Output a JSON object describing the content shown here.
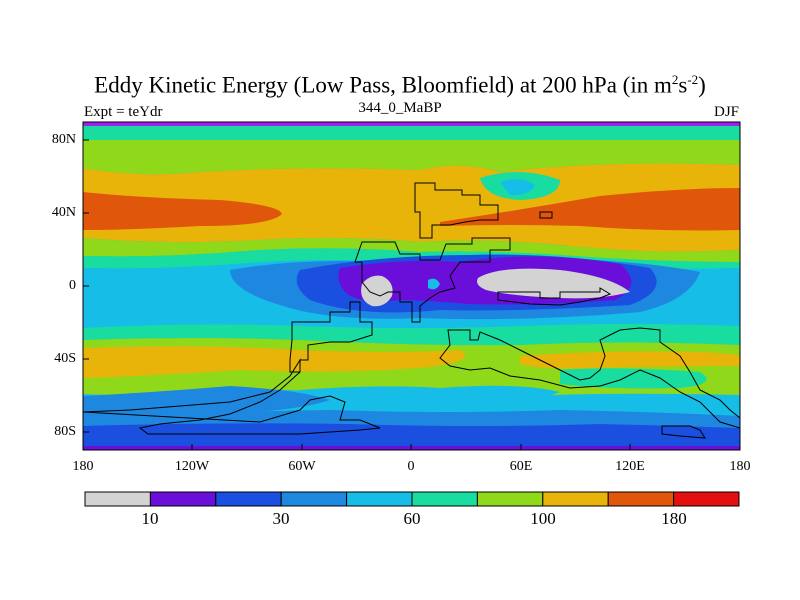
{
  "title": {
    "main": "Eddy Kinetic Energy (Low Pass, Bloomfield) at 200 hPa (in m",
    "sup1": "2",
    "mid": "s",
    "sup2": "-2",
    "end": ")"
  },
  "left_label": "Expt = teYdr",
  "center_label": "344_0_MaBP",
  "right_label": "DJF",
  "map": {
    "projection": "cylindrical equidistant",
    "lat_ticks": [
      "80N",
      "40N",
      "0",
      "40S",
      "80S"
    ],
    "lon_ticks": [
      "180",
      "120W",
      "60W",
      "0",
      "60E",
      "120E",
      "180"
    ]
  },
  "colorbar": {
    "colors": [
      "#d3d3d3",
      "#6a0fd9",
      "#1a4fe0",
      "#1e88e0",
      "#16bde6",
      "#19dca0",
      "#8fd81a",
      "#e8b40a",
      "#e0560a",
      "#e31010"
    ],
    "labels": [
      "10",
      "30",
      "60",
      "100",
      "180"
    ]
  },
  "palette": {
    "grey": "#d3d3d3",
    "purple": "#6a0fd9",
    "blue": "#1a4fe0",
    "mid_blue": "#1e88e0",
    "cyan": "#16bde6",
    "teal": "#19dca0",
    "lime": "#8fd81a",
    "yellow": "#e8b40a",
    "orange": "#e0560a",
    "red": "#e31010",
    "top_edge": "#a020f0"
  }
}
